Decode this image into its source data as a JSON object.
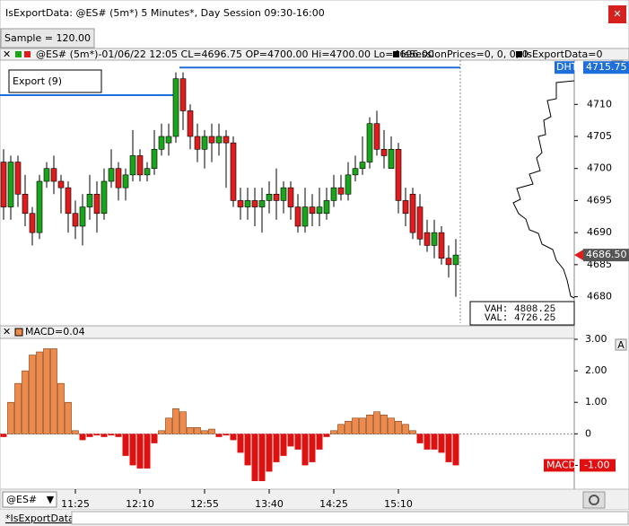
{
  "window": {
    "title": "IsExportData: @ES# (5m*) 5 Minutes*, Day Session 09:30-16:00",
    "close": "✕",
    "sample": "Sample = 120.00",
    "tab": "*IsExportData",
    "symbol": "@ES#"
  },
  "price_pane": {
    "header": "@ES# (5m*)-01/06/22 12:05 CL=4696.75 OP=4700.00 Hi=4700.00 Lo=4696.00",
    "legend_1": "IsSessionPrices=0, 0, 0, 0",
    "legend_2": "IsExportData=0",
    "export_label": "Export (9)",
    "button": "O",
    "ylim": [
      4675.6,
      4716.9
    ],
    "yticks": [
      4680,
      4685,
      4690,
      4695,
      4700,
      4705,
      4710
    ],
    "dht_label": "DHT",
    "dht": {
      "value": 4715.75,
      "label": "4715.75"
    },
    "last": {
      "value": 4686.5,
      "label": "4686.50"
    },
    "vah": "VAH: 4808.25",
    "val": "VAL: 4726.25",
    "up_color": "#1aa61a",
    "down_color": "#e01c1c",
    "candles": [
      [
        4701,
        4703,
        4692,
        4694
      ],
      [
        4694,
        4702,
        4692,
        4701
      ],
      [
        4701,
        4702,
        4694,
        4696
      ],
      [
        4696,
        4699,
        4691,
        4693
      ],
      [
        4693,
        4694,
        4688,
        4690
      ],
      [
        4690,
        4699,
        4689,
        4698
      ],
      [
        4698,
        4701,
        4697,
        4700
      ],
      [
        4700,
        4702,
        4696,
        4698
      ],
      [
        4698,
        4699,
        4693,
        4697
      ],
      [
        4697,
        4698,
        4690,
        4693
      ],
      [
        4693,
        4695,
        4689,
        4691
      ],
      [
        4691,
        4696,
        4688,
        4694
      ],
      [
        4694,
        4699,
        4692,
        4696
      ],
      [
        4696,
        4698,
        4690,
        4693
      ],
      [
        4693,
        4700,
        4692,
        4698
      ],
      [
        4698,
        4703,
        4697,
        4700
      ],
      [
        4700,
        4701,
        4695,
        4697
      ],
      [
        4697,
        4700,
        4695,
        4699
      ],
      [
        4699,
        4706,
        4698,
        4702
      ],
      [
        4702,
        4703,
        4698,
        4699
      ],
      [
        4699,
        4701,
        4698,
        4700
      ],
      [
        4700,
        4706,
        4699,
        4703
      ],
      [
        4703,
        4707,
        4702,
        4705
      ],
      [
        4704,
        4707,
        4702,
        4705
      ],
      [
        4705,
        4715,
        4704,
        4714
      ],
      [
        4714,
        4715,
        4706,
        4709
      ],
      [
        4709,
        4710,
        4703,
        4705
      ],
      [
        4705,
        4707,
        4701,
        4703
      ],
      [
        4703,
        4706,
        4700,
        4705
      ],
      [
        4705,
        4707,
        4701,
        4704
      ],
      [
        4704,
        4707,
        4702,
        4705
      ],
      [
        4705,
        4706,
        4697,
        4704
      ],
      [
        4704,
        4705,
        4694,
        4695
      ],
      [
        4695,
        4697,
        4692,
        4694
      ],
      [
        4694,
        4697,
        4692,
        4695
      ],
      [
        4695,
        4697,
        4691,
        4694
      ],
      [
        4694,
        4697,
        4690,
        4695
      ],
      [
        4695,
        4698,
        4693,
        4696
      ],
      [
        4696,
        4700,
        4692,
        4695
      ],
      [
        4695,
        4698,
        4693,
        4697
      ],
      [
        4697,
        4698,
        4692,
        4694
      ],
      [
        4694,
        4696,
        4690,
        4691
      ],
      [
        4691,
        4697,
        4690,
        4694
      ],
      [
        4694,
        4696,
        4691,
        4693
      ],
      [
        4693,
        4697,
        4691,
        4694
      ],
      [
        4693,
        4697,
        4692,
        4695
      ],
      [
        4695,
        4699,
        4694,
        4697
      ],
      [
        4697,
        4699,
        4695,
        4696
      ],
      [
        4696,
        4701,
        4695,
        4699
      ],
      [
        4699,
        4702,
        4698,
        4700
      ],
      [
        4700,
        4705,
        4699,
        4701
      ],
      [
        4701,
        4708,
        4700,
        4707
      ],
      [
        4707,
        4709,
        4702,
        4703
      ],
      [
        4703,
        4706,
        4700,
        4702
      ],
      [
        4700,
        4705,
        4700,
        4703
      ],
      [
        4703,
        4704,
        4693,
        4695
      ],
      [
        4695,
        4697,
        4691,
        4693
      ],
      [
        4696,
        4697,
        4689,
        4690
      ],
      [
        4694,
        4696,
        4688,
        4689
      ],
      [
        4690,
        4692,
        4687,
        4688
      ],
      [
        4688,
        4692,
        4686,
        4690
      ],
      [
        4690,
        4691,
        4685,
        4686
      ],
      [
        4686,
        4688,
        4683,
        4685
      ],
      [
        4685,
        4689,
        4680,
        4686.5
      ]
    ]
  },
  "macd_pane": {
    "header": "MACD=0.04",
    "button": "A",
    "ylim": [
      -1.7,
      3.0
    ],
    "yticks": [
      {
        "value": 3,
        "label": "3.00"
      },
      {
        "value": 2,
        "label": "2.00"
      },
      {
        "value": 1,
        "label": "1.00"
      },
      0,
      {
        "value": -1,
        "label": "-1.00"
      }
    ],
    "pos_color": "#f08a4b",
    "neg_color": "#e01010",
    "name": "MACD",
    "last": {
      "value": -1,
      "label": "-1.00"
    },
    "values": [
      -0.1,
      1.0,
      1.6,
      2.0,
      2.5,
      2.6,
      2.7,
      2.7,
      1.6,
      1.0,
      0.1,
      -0.2,
      -0.1,
      -0.05,
      -0.1,
      -0.05,
      -0.1,
      -0.7,
      -1.0,
      -1.1,
      -1.1,
      -0.3,
      0.1,
      0.5,
      0.8,
      0.7,
      0.2,
      0.2,
      0.1,
      0.15,
      -0.1,
      -0.05,
      -0.2,
      -0.6,
      -1.0,
      -1.5,
      -1.5,
      -1.2,
      -0.9,
      -0.7,
      -0.4,
      -0.5,
      -1.0,
      -0.9,
      -0.5,
      -0.1,
      0.1,
      0.3,
      0.4,
      0.5,
      0.5,
      0.6,
      0.7,
      0.6,
      0.5,
      0.4,
      0.3,
      0.1,
      -0.3,
      -0.5,
      -0.5,
      -0.6,
      -0.9,
      -1.0
    ]
  },
  "time_axis": {
    "ticks": [
      {
        "value": 10,
        "label": "11:25"
      },
      {
        "value": 19,
        "label": "12:10"
      },
      {
        "value": 28,
        "label": "12:55"
      },
      {
        "value": 37,
        "label": "13:40"
      },
      {
        "value": 46,
        "label": "14:25"
      },
      {
        "value": 55,
        "label": "15:10"
      }
    ]
  }
}
